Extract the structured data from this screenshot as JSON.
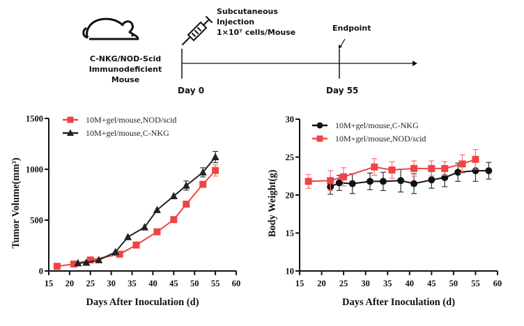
{
  "schematic": {
    "mouse_icon": "mouse-icon",
    "syringe_icon": "syringe-icon",
    "mouse_label_lines": [
      "C-NKG/NOD-Scid",
      "Immunodeficient",
      "Mouse"
    ],
    "injection_label_lines": [
      "Subcutaneous",
      "Injection",
      "1×10⁷ cells/Mouse"
    ],
    "endpoint_label": "Endpoint",
    "start_label": "Day 0",
    "end_label": "Day 55"
  },
  "chart_data": [
    {
      "type": "line",
      "title": "",
      "xlabel": "Days After Inoculation (d)",
      "ylabel": "Tumor Volume(mm³)",
      "xlim": [
        15,
        60
      ],
      "ylim": [
        0,
        1500
      ],
      "xticks": [
        15,
        20,
        25,
        30,
        35,
        40,
        45,
        50,
        55,
        60
      ],
      "yticks": [
        0,
        500,
        1000,
        1500
      ],
      "grid": false,
      "legend_position": "top-left",
      "series": [
        {
          "name": "10M+gel/mouse,NOD/scid",
          "color": "#ef4444",
          "marker": "square",
          "x": [
            17,
            21,
            25,
            32,
            36,
            41,
            45,
            48,
            52,
            55
          ],
          "y": [
            46,
            68,
            108,
            165,
            255,
            385,
            505,
            657,
            852,
            988
          ],
          "err": [
            0,
            0,
            0,
            0,
            0,
            0,
            0,
            0,
            0,
            55
          ]
        },
        {
          "name": "10M+gel/mouse,C-NKG",
          "color": "#222222",
          "marker": "triangle",
          "x": [
            22,
            24,
            27,
            31,
            34,
            38,
            41,
            45,
            48,
            52,
            55
          ],
          "y": [
            77,
            82,
            107,
            186,
            334,
            430,
            600,
            736,
            840,
            970,
            1120
          ],
          "err": [
            0,
            0,
            0,
            0,
            0,
            0,
            0,
            0,
            45,
            45,
            55
          ]
        }
      ]
    },
    {
      "type": "line",
      "title": "",
      "xlabel": "Days After Inoculation (d)",
      "ylabel": "Body Weight(g)",
      "xlim": [
        15,
        60
      ],
      "ylim": [
        10,
        30
      ],
      "xticks": [
        15,
        20,
        25,
        30,
        35,
        40,
        45,
        50,
        55,
        60
      ],
      "yticks": [
        10,
        15,
        20,
        25,
        30
      ],
      "grid": false,
      "legend_position": "top-left",
      "series": [
        {
          "name": "10M+gel/mouse,C-NKG",
          "color": "#111111",
          "marker": "circle",
          "x": [
            22,
            24,
            27,
            31,
            34,
            38,
            41,
            45,
            48,
            51,
            55,
            58
          ],
          "y": [
            21.1,
            21.6,
            21.5,
            21.8,
            21.8,
            21.9,
            21.5,
            22.0,
            22.3,
            23.0,
            23.2,
            23.2
          ],
          "err": [
            1.0,
            1.0,
            1.3,
            1.1,
            1.2,
            1.5,
            1.3,
            1.1,
            1.2,
            1.2,
            1.4,
            1.1
          ]
        },
        {
          "name": "10M+gel/mouse,NOD/scid",
          "color": "#ef4444",
          "marker": "square",
          "x": [
            17,
            22,
            25,
            32,
            36,
            41,
            45,
            48,
            52,
            55
          ],
          "y": [
            21.8,
            21.9,
            22.4,
            23.7,
            23.3,
            23.5,
            23.5,
            23.5,
            24.1,
            24.7
          ],
          "err": [
            0.9,
            1.3,
            1.2,
            1.1,
            1.1,
            1.0,
            1.0,
            0.9,
            1.2,
            1.3
          ]
        }
      ]
    }
  ]
}
